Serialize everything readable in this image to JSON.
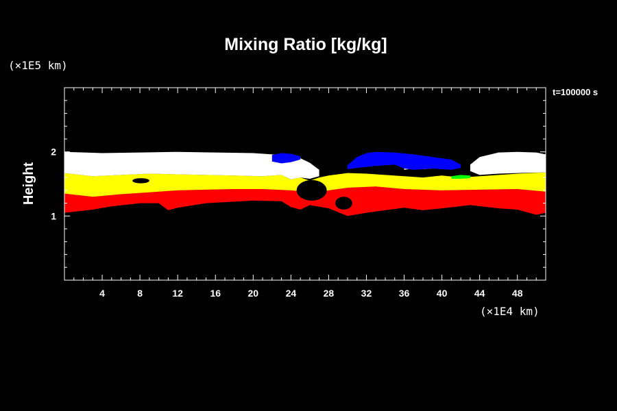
{
  "chart_data": {
    "type": "heatmap",
    "title": "Mixing Ratio [kg/kg]",
    "ylabel": "Height",
    "y_unit": "(×1E5 km)",
    "x_unit": "(×1E4 km)",
    "time_label": "t=100000 s",
    "xlim": [
      0,
      51
    ],
    "ylim": [
      0,
      3
    ],
    "x_ticks": [
      4,
      8,
      12,
      16,
      20,
      24,
      28,
      32,
      36,
      40,
      44,
      48
    ],
    "y_ticks": [
      1,
      2
    ],
    "x_tick_labels": [
      "4",
      "8",
      "12",
      "16",
      "20",
      "24",
      "28",
      "32",
      "36",
      "40",
      "44",
      "48"
    ],
    "y_tick_labels": [
      "1",
      "2"
    ],
    "colors": {
      "background": "#000000",
      "red": "#ff0000",
      "yellow": "#ffff00",
      "white": "#ffffff",
      "blue": "#0000ff",
      "green": "#00ff00"
    },
    "layers": [
      {
        "color": "red",
        "upper": [
          [
            0,
            1.35
          ],
          [
            3,
            1.3
          ],
          [
            6,
            1.34
          ],
          [
            9,
            1.37
          ],
          [
            12,
            1.4
          ],
          [
            15,
            1.41
          ],
          [
            18,
            1.42
          ],
          [
            21,
            1.42
          ],
          [
            24,
            1.4
          ],
          [
            27,
            1.36
          ],
          [
            28,
            1.4
          ],
          [
            30,
            1.44
          ],
          [
            33,
            1.46
          ],
          [
            36,
            1.42
          ],
          [
            40,
            1.4
          ],
          [
            44,
            1.41
          ],
          [
            48,
            1.42
          ],
          [
            51,
            1.38
          ]
        ],
        "lower": [
          [
            0,
            1.05
          ],
          [
            3,
            1.1
          ],
          [
            5,
            1.15
          ],
          [
            8,
            1.2
          ],
          [
            10,
            1.2
          ],
          [
            11,
            1.09
          ],
          [
            12,
            1.13
          ],
          [
            15,
            1.2
          ],
          [
            20,
            1.24
          ],
          [
            23,
            1.23
          ],
          [
            24,
            1.14
          ],
          [
            25,
            1.1
          ],
          [
            26,
            1.17
          ],
          [
            28,
            1.12
          ],
          [
            30,
            1.0
          ],
          [
            32,
            1.05
          ],
          [
            34,
            1.09
          ],
          [
            36,
            1.13
          ],
          [
            38,
            1.09
          ],
          [
            40,
            1.12
          ],
          [
            43,
            1.17
          ],
          [
            46,
            1.12
          ],
          [
            48,
            1.1
          ],
          [
            50,
            1.02
          ],
          [
            51,
            1.05
          ]
        ]
      },
      {
        "color": "yellow",
        "upper": [
          [
            0,
            1.67
          ],
          [
            3,
            1.62
          ],
          [
            6,
            1.64
          ],
          [
            9,
            1.66
          ],
          [
            12,
            1.65
          ],
          [
            15,
            1.64
          ],
          [
            18,
            1.63
          ],
          [
            21,
            1.62
          ],
          [
            23,
            1.64
          ],
          [
            24,
            1.57
          ],
          [
            25,
            1.6
          ],
          [
            26,
            1.55
          ],
          [
            27,
            1.6
          ],
          [
            28,
            1.63
          ],
          [
            30,
            1.67
          ],
          [
            32,
            1.66
          ],
          [
            34,
            1.64
          ],
          [
            36,
            1.62
          ],
          [
            38,
            1.6
          ],
          [
            40,
            1.63
          ],
          [
            42,
            1.6
          ],
          [
            44,
            1.62
          ],
          [
            46,
            1.64
          ],
          [
            48,
            1.66
          ],
          [
            51,
            1.68
          ]
        ],
        "lower": [
          [
            0,
            1.35
          ],
          [
            3,
            1.3
          ],
          [
            6,
            1.34
          ],
          [
            9,
            1.37
          ],
          [
            12,
            1.4
          ],
          [
            15,
            1.41
          ],
          [
            18,
            1.42
          ],
          [
            21,
            1.42
          ],
          [
            24,
            1.4
          ],
          [
            27,
            1.36
          ],
          [
            28,
            1.4
          ],
          [
            30,
            1.44
          ],
          [
            33,
            1.46
          ],
          [
            36,
            1.42
          ],
          [
            40,
            1.4
          ],
          [
            44,
            1.41
          ],
          [
            48,
            1.42
          ],
          [
            51,
            1.38
          ]
        ]
      },
      {
        "color": "white",
        "upper": [
          [
            0,
            2.0
          ],
          [
            4,
            1.98
          ],
          [
            8,
            1.99
          ],
          [
            12,
            2.0
          ],
          [
            16,
            1.99
          ],
          [
            20,
            1.98
          ],
          [
            22,
            1.96
          ],
          [
            24,
            1.93
          ],
          [
            25,
            1.9
          ],
          [
            26,
            1.83
          ],
          [
            27,
            1.72
          ]
        ],
        "lower": [
          [
            0,
            1.67
          ],
          [
            3,
            1.62
          ],
          [
            6,
            1.64
          ],
          [
            9,
            1.66
          ],
          [
            12,
            1.65
          ],
          [
            15,
            1.64
          ],
          [
            18,
            1.63
          ],
          [
            21,
            1.62
          ],
          [
            23,
            1.64
          ],
          [
            24,
            1.57
          ],
          [
            25,
            1.6
          ],
          [
            26,
            1.58
          ],
          [
            27,
            1.62
          ]
        ]
      },
      {
        "color": "white",
        "upper": [
          [
            43,
            1.8
          ],
          [
            44,
            1.92
          ],
          [
            46,
            1.99
          ],
          [
            48,
            2.0
          ],
          [
            50,
            1.99
          ],
          [
            51,
            1.96
          ]
        ],
        "lower": [
          [
            43,
            1.7
          ],
          [
            44,
            1.64
          ],
          [
            46,
            1.66
          ],
          [
            48,
            1.67
          ],
          [
            51,
            1.68
          ]
        ]
      },
      {
        "color": "white",
        "upper": [
          [
            36,
            1.8
          ],
          [
            37,
            1.87
          ],
          [
            38,
            1.85
          ],
          [
            39,
            1.83
          ],
          [
            40,
            1.8
          ]
        ],
        "lower": [
          [
            36,
            1.72
          ],
          [
            37,
            1.74
          ],
          [
            38,
            1.73
          ],
          [
            39,
            1.74
          ],
          [
            40,
            1.76
          ]
        ]
      },
      {
        "color": "blue",
        "upper": [
          [
            22,
            1.95
          ],
          [
            23,
            1.98
          ],
          [
            24,
            1.97
          ],
          [
            25,
            1.93
          ]
        ],
        "lower": [
          [
            22,
            1.85
          ],
          [
            23,
            1.82
          ],
          [
            24,
            1.84
          ],
          [
            25,
            1.88
          ]
        ]
      },
      {
        "color": "blue",
        "upper": [
          [
            30,
            1.79
          ],
          [
            31,
            1.92
          ],
          [
            32,
            1.98
          ],
          [
            33,
            2.0
          ],
          [
            35,
            1.99
          ],
          [
            37,
            1.96
          ],
          [
            39,
            1.92
          ],
          [
            41,
            1.88
          ],
          [
            42,
            1.8
          ]
        ],
        "lower": [
          [
            30,
            1.73
          ],
          [
            31,
            1.75
          ],
          [
            33,
            1.78
          ],
          [
            35,
            1.8
          ],
          [
            36,
            1.74
          ],
          [
            37,
            1.72
          ],
          [
            39,
            1.74
          ],
          [
            41,
            1.72
          ],
          [
            42,
            1.75
          ]
        ]
      },
      {
        "color": "green",
        "upper": [
          [
            41,
            1.62
          ],
          [
            42,
            1.64
          ],
          [
            43,
            1.63
          ]
        ],
        "lower": [
          [
            41,
            1.58
          ],
          [
            42,
            1.58
          ],
          [
            43,
            1.59
          ]
        ]
      }
    ],
    "voids": [
      {
        "color": "background",
        "x": 8.1,
        "y": 1.55,
        "rx": 0.9,
        "ry": 0.04
      },
      {
        "color": "background",
        "x": 26.2,
        "y": 1.4,
        "rx": 1.6,
        "ry": 0.16
      },
      {
        "color": "background",
        "x": 29.6,
        "y": 1.2,
        "rx": 0.9,
        "ry": 0.1
      }
    ]
  }
}
